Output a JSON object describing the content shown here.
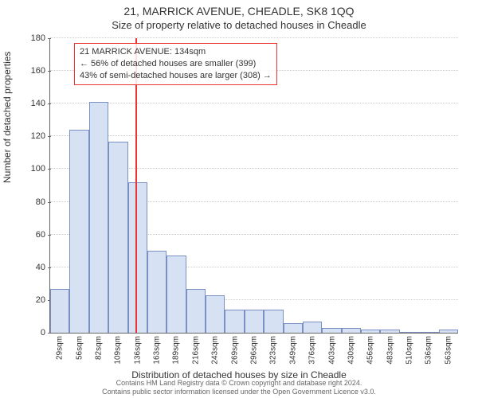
{
  "header": {
    "address": "21, MARRICK AVENUE, CHEADLE, SK8 1QQ",
    "subtitle": "Size of property relative to detached houses in Cheadle"
  },
  "chart": {
    "type": "histogram",
    "ylabel": "Number of detached properties",
    "xlabel": "Distribution of detached houses by size in Cheadle",
    "ylim": [
      0,
      180
    ],
    "ytick_step": 20,
    "background_color": "#ffffff",
    "grid_color": "#cccccc",
    "axis_color": "#666666",
    "tick_fontsize": 11,
    "label_fontsize": 12,
    "bar_fill": "#d6e2f3",
    "bar_stroke": "#7a90c2",
    "bar_width_ratio": 1.0,
    "x_categories": [
      "29sqm",
      "56sqm",
      "82sqm",
      "109sqm",
      "136sqm",
      "163sqm",
      "189sqm",
      "216sqm",
      "243sqm",
      "269sqm",
      "296sqm",
      "323sqm",
      "349sqm",
      "376sqm",
      "403sqm",
      "430sqm",
      "456sqm",
      "483sqm",
      "510sqm",
      "536sqm",
      "563sqm"
    ],
    "values": [
      27,
      124,
      141,
      117,
      92,
      50,
      47,
      27,
      23,
      14,
      14,
      14,
      6,
      7,
      3,
      3,
      2,
      2,
      0,
      0,
      2
    ],
    "marker": {
      "value_sqm": 134,
      "color": "#ee3333",
      "width": 2
    },
    "annotation": {
      "lines": [
        "21 MARRICK AVENUE: 134sqm",
        "← 56% of detached houses are smaller (399)",
        "43% of semi-detached houses are larger (308) →"
      ],
      "border_color": "#ee3333",
      "text_color": "#333333",
      "fontsize": 11
    }
  },
  "footer": {
    "line1": "Contains HM Land Registry data © Crown copyright and database right 2024.",
    "line2": "Contains public sector information licensed under the Open Government Licence v3.0."
  }
}
